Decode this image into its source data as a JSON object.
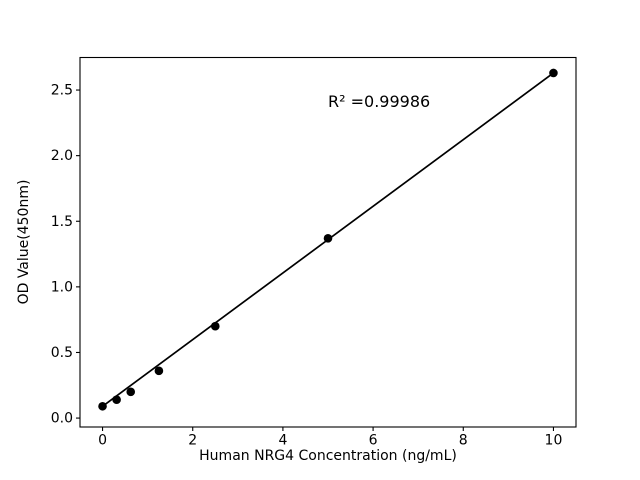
{
  "chart_data": {
    "type": "scatter",
    "title": "",
    "xlabel": "Human NRG4 Concentration (ng/mL)",
    "ylabel": "OD Value(450nm)",
    "annotation": "R² =0.99986",
    "x": [
      0,
      0.3125,
      0.625,
      1.25,
      2.5,
      5,
      10
    ],
    "y": [
      0.09,
      0.14,
      0.2,
      0.36,
      0.7,
      1.37,
      2.63
    ],
    "fit_line": {
      "x1": 0,
      "y1": 0.09,
      "x2": 10,
      "y2": 2.63
    },
    "x_tick_values": [
      0,
      2,
      4,
      6,
      8,
      10
    ],
    "x_tick_labels": [
      "0",
      "2",
      "4",
      "6",
      "8",
      "10"
    ],
    "y_tick_values": [
      0.0,
      0.5,
      1.0,
      1.5,
      2.0,
      2.5
    ],
    "y_tick_labels": [
      "0.0",
      "0.5",
      "1.0",
      "1.5",
      "2.0",
      "2.5"
    ],
    "xlim": [
      -0.5,
      10.5
    ],
    "ylim": [
      -0.068,
      2.748
    ],
    "grid": false,
    "legend": null,
    "marker_color": "#000000",
    "line_color": "#000000",
    "axis_color": "#000000",
    "background_color": "#ffffff"
  }
}
